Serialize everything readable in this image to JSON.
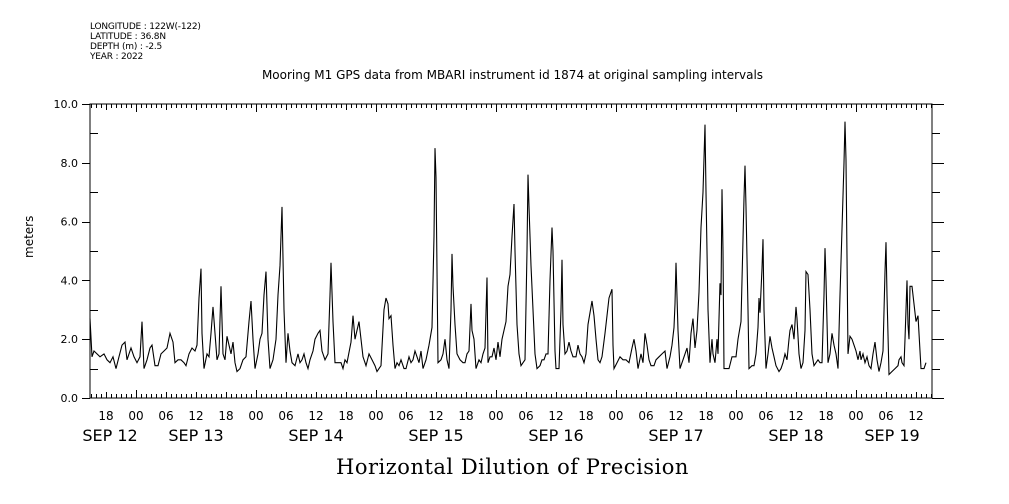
{
  "header": {
    "longitude": "LONGITUDE : 122W(-122)",
    "latitude": "LATITUDE : 36.8N",
    "depth": "DEPTH (m) : -2.5",
    "year": "YEAR : 2022"
  },
  "chart_data": {
    "type": "line",
    "title": "Mooring M1 GPS data from MBARI instrument id 1874 at original sampling intervals",
    "xlabel": "Horizontal Dilution of Precision",
    "ylabel": "meters",
    "x_units": "hours since 2022-09-12 00:00",
    "xlim": [
      14.8,
      183.2
    ],
    "ylim": [
      0,
      10
    ],
    "grid": false,
    "y_ticks": [
      "0.0",
      "2.0",
      "4.0",
      "6.0",
      "8.0",
      "10.0"
    ],
    "hour_tick_labels": [
      "18",
      "00",
      "06",
      "12",
      "18",
      "00",
      "06",
      "12",
      "18",
      "00",
      "06",
      "12",
      "18",
      "00",
      "06",
      "12",
      "18",
      "00",
      "06",
      "12",
      "18",
      "00",
      "06",
      "12",
      "18",
      "00",
      "06",
      "12",
      "18",
      "00",
      "06",
      "12"
    ],
    "hour_tick_values": [
      18,
      24,
      30,
      36,
      42,
      48,
      54,
      60,
      66,
      72,
      78,
      84,
      90,
      96,
      102,
      108,
      114,
      120,
      126,
      132,
      138,
      144,
      150,
      156,
      162,
      168,
      174,
      180,
      186,
      192,
      198,
      204
    ],
    "date_labels": [
      "SEP 12",
      "SEP 13",
      "SEP 14",
      "SEP 15",
      "SEP 16",
      "SEP 17",
      "SEP 18",
      "SEP 19"
    ],
    "x": [
      14.8,
      15.2,
      15.6,
      16.2,
      16.8,
      17.6,
      18.2,
      18.8,
      19.4,
      20.0,
      20.6,
      21.2,
      21.8,
      22.2,
      23.0,
      23.6,
      24.2,
      24.8,
      25.2,
      25.6,
      26.2,
      26.8,
      27.2,
      27.8,
      28.4,
      29.0,
      29.6,
      30.2,
      30.8,
      31.4,
      31.8,
      32.4,
      33.0,
      33.6,
      34.0,
      34.6,
      35.2,
      35.8,
      36.2,
      36.6,
      37.0,
      37.2,
      37.6,
      38.2,
      38.6,
      39.0,
      39.4,
      39.8,
      40.2,
      40.6,
      41.0,
      41.4,
      41.8,
      42.2,
      42.6,
      43.0,
      43.4,
      43.8,
      44.2,
      44.8,
      45.4,
      46.0,
      46.6,
      47.0,
      47.4,
      47.8,
      48.4,
      48.8,
      49.2,
      49.6,
      50.0,
      50.4,
      50.8,
      51.4,
      52.0,
      52.4,
      52.8,
      53.2,
      53.6,
      54.0,
      54.4,
      54.8,
      55.2,
      55.8,
      56.4,
      56.8,
      57.2,
      57.6,
      58.0,
      58.4,
      58.8,
      59.4,
      59.8,
      60.4,
      60.8,
      61.2,
      61.8,
      62.4,
      62.8,
      63.0,
      63.4,
      63.8,
      64.4,
      65.0,
      65.4,
      65.8,
      66.2,
      67.0,
      67.4,
      67.8,
      68.2,
      68.6,
      69.0,
      69.4,
      70.0,
      70.6,
      71.2,
      71.8,
      72.2,
      72.6,
      73.0,
      73.6,
      74.0,
      74.4,
      74.6,
      75.0,
      75.4,
      75.8,
      76.2,
      76.6,
      77.0,
      77.6,
      78.0,
      78.6,
      79.0,
      79.4,
      79.8,
      80.2,
      80.6,
      81.0,
      81.4,
      82.0,
      82.6,
      83.2,
      83.6,
      83.8,
      84.0,
      84.4,
      85.0,
      85.4,
      85.8,
      86.2,
      86.6,
      87.0,
      87.2,
      87.4,
      87.8,
      88.2,
      88.8,
      89.4,
      89.8,
      90.2,
      90.6,
      91.0,
      91.2,
      91.6,
      92.0,
      92.6,
      93.0,
      93.4,
      93.8,
      94.2,
      94.4,
      94.8,
      95.2,
      95.6,
      96.0,
      96.4,
      96.8,
      97.2,
      97.6,
      98.0,
      98.4,
      98.8,
      99.2,
      99.6,
      99.8,
      100.2,
      100.6,
      101.0,
      101.4,
      101.8,
      102.2,
      102.4,
      102.6,
      103.0,
      103.4,
      103.8,
      104.2,
      104.8,
      105.2,
      105.6,
      106.0,
      106.4,
      106.8,
      107.2,
      107.4,
      107.8,
      108.0,
      108.6,
      109.0,
      109.2,
      109.4,
      109.8,
      110.2,
      110.6,
      111.0,
      111.4,
      112.0,
      112.4,
      112.8,
      113.2,
      113.6,
      114.0,
      114.4,
      115.2,
      115.6,
      116.0,
      116.4,
      116.8,
      117.2,
      117.8,
      118.2,
      118.6,
      119.2,
      119.4,
      119.6,
      120.2,
      120.8,
      121.4,
      122.0,
      122.6,
      123.2,
      123.6,
      124.0,
      124.4,
      125.0,
      125.4,
      125.8,
      126.2,
      126.6,
      127.0,
      127.6,
      128.0,
      128.6,
      129.2,
      129.8,
      130.2,
      130.8,
      131.2,
      131.6,
      131.8,
      132.0,
      132.4,
      132.8,
      133.4,
      133.8,
      134.2,
      134.6,
      135.0,
      135.4,
      135.8,
      136.2,
      136.6,
      137.0,
      137.4,
      137.8,
      138.0,
      138.4,
      138.8,
      139.2,
      139.4,
      139.8,
      140.2,
      140.4,
      140.8,
      141.0,
      141.2,
      141.4,
      141.6,
      142.2,
      142.6,
      143.2,
      143.6,
      144.0,
      144.4,
      145.0,
      145.2,
      145.6,
      145.8,
      146.0,
      146.4,
      146.6,
      147.2,
      147.6,
      148.0,
      148.4,
      148.6,
      148.8,
      149.2,
      149.4,
      149.6,
      150.0,
      150.4,
      150.8,
      151.2,
      151.6,
      152.0,
      152.6,
      153.0,
      153.4,
      153.8,
      154.2,
      154.6,
      154.8,
      155.2,
      155.6,
      156.0,
      156.2,
      156.6,
      157.0,
      157.4,
      157.8,
      158.0,
      158.4,
      158.8,
      159.2,
      159.6,
      160.0,
      160.4,
      160.8,
      161.2,
      161.6,
      161.8,
      162.0,
      162.4,
      162.8,
      163.2,
      163.6,
      164.0,
      164.4,
      164.8,
      165.6,
      165.8,
      166.0,
      166.4,
      166.8,
      167.2,
      167.6,
      168.0,
      168.4,
      168.8,
      169.0,
      169.4,
      169.8,
      170.2,
      170.6,
      171.0,
      171.4,
      171.8,
      172.2,
      172.6,
      173.0,
      173.4,
      173.8,
      174.0,
      174.2,
      174.6,
      175.2,
      175.8,
      176.4,
      176.6,
      177.0,
      177.2,
      177.6,
      177.8,
      178.2,
      178.4,
      178.6,
      178.8,
      179.2,
      179.6,
      180.0,
      180.4,
      180.6,
      181.0,
      181.6,
      182.0
    ],
    "y": [
      2.7,
      1.4,
      1.6,
      1.5,
      1.4,
      1.5,
      1.3,
      1.2,
      1.4,
      1.0,
      1.4,
      1.8,
      1.9,
      1.3,
      1.7,
      1.4,
      1.2,
      1.4,
      2.6,
      1.0,
      1.3,
      1.7,
      1.8,
      1.1,
      1.1,
      1.5,
      1.6,
      1.7,
      2.2,
      1.9,
      1.2,
      1.3,
      1.3,
      1.2,
      1.1,
      1.5,
      1.7,
      1.6,
      1.8,
      3.4,
      4.4,
      2.2,
      1.0,
      1.5,
      1.4,
      2.2,
      3.1,
      2.2,
      1.3,
      1.5,
      3.8,
      1.5,
      1.3,
      2.1,
      1.8,
      1.5,
      1.9,
      1.2,
      0.9,
      1.0,
      1.3,
      1.4,
      2.6,
      3.3,
      2.0,
      1.0,
      1.5,
      2.0,
      2.2,
      3.5,
      4.3,
      2.0,
      1.0,
      1.3,
      2.0,
      3.5,
      4.5,
      6.5,
      3.0,
      1.2,
      2.2,
      1.6,
      1.2,
      1.1,
      1.5,
      1.2,
      1.3,
      1.5,
      1.2,
      1.0,
      1.3,
      1.6,
      2.0,
      2.2,
      2.3,
      1.6,
      1.3,
      1.5,
      3.5,
      4.6,
      2.6,
      1.2,
      1.2,
      1.2,
      1.0,
      1.3,
      1.2,
      1.9,
      2.8,
      2.0,
      2.3,
      2.6,
      2.0,
      1.4,
      1.1,
      1.5,
      1.3,
      1.1,
      0.9,
      1.0,
      1.1,
      3.0,
      3.4,
      3.2,
      2.7,
      2.8,
      1.8,
      1.0,
      1.2,
      1.1,
      1.3,
      1.0,
      1.0,
      1.4,
      1.2,
      1.3,
      1.6,
      1.4,
      1.2,
      1.6,
      1.0,
      1.3,
      1.8,
      2.4,
      5.5,
      8.5,
      7.5,
      1.2,
      1.3,
      1.5,
      2.0,
      1.3,
      1.0,
      3.0,
      4.9,
      3.8,
      2.5,
      1.5,
      1.3,
      1.2,
      1.2,
      1.5,
      1.6,
      3.2,
      2.3,
      2.0,
      1.0,
      1.3,
      1.2,
      1.5,
      1.7,
      4.1,
      1.2,
      1.4,
      1.4,
      1.7,
      1.3,
      1.9,
      1.4,
      2.0,
      2.3,
      2.6,
      3.8,
      4.2,
      5.5,
      6.6,
      5.0,
      2.5,
      1.5,
      1.1,
      1.2,
      1.3,
      5.0,
      7.6,
      6.5,
      4.5,
      3.0,
      1.5,
      1.0,
      1.1,
      1.3,
      1.3,
      1.5,
      1.5,
      4.0,
      5.8,
      5.0,
      1.6,
      1.0,
      1.0,
      3.0,
      4.7,
      2.5,
      1.5,
      1.6,
      1.9,
      1.6,
      1.4,
      1.4,
      1.8,
      1.5,
      1.4,
      1.2,
      1.5,
      2.5,
      3.3,
      2.8,
      2.0,
      1.3,
      1.2,
      1.4,
      2.2,
      2.8,
      3.4,
      3.7,
      1.8,
      1.0,
      1.2,
      1.4,
      1.3,
      1.3,
      1.2,
      1.7,
      2.0,
      1.6,
      1.0,
      1.5,
      1.2,
      2.2,
      1.8,
      1.3,
      1.1,
      1.1,
      1.3,
      1.4,
      1.5,
      1.6,
      1.0,
      1.4,
      1.8,
      2.4,
      3.2,
      4.6,
      2.3,
      1.0,
      1.3,
      1.5,
      1.7,
      1.2,
      2.2,
      2.7,
      1.7,
      2.3,
      3.6,
      5.8,
      7.0,
      9.3,
      7.0,
      3.0,
      1.2,
      2.0,
      1.5,
      1.2,
      2.0,
      1.5,
      3.9,
      3.5,
      7.1,
      5.0,
      1.0,
      1.0,
      1.0,
      1.4,
      1.4,
      1.4,
      2.0,
      2.6,
      4.0,
      6.8,
      7.9,
      6.5,
      3.0,
      1.0,
      1.1,
      1.1,
      1.5,
      2.4,
      3.4,
      2.9,
      4.4,
      5.4,
      3.0,
      1.0,
      1.5,
      2.1,
      1.7,
      1.4,
      1.1,
      0.9,
      1.0,
      1.2,
      1.5,
      1.3,
      2.0,
      2.3,
      2.5,
      2.0,
      3.1,
      2.7,
      1.5,
      1.0,
      1.2,
      2.3,
      4.3,
      4.2,
      3.0,
      1.5,
      1.1,
      1.2,
      1.3,
      1.2,
      1.2,
      3.5,
      5.1,
      4.0,
      1.2,
      1.5,
      2.2,
      1.8,
      1.5,
      1.0,
      3.5,
      8.0,
      9.4,
      8.1,
      1.5,
      2.1,
      2.0,
      1.8,
      1.6,
      1.3,
      1.6,
      1.3,
      1.5,
      1.2,
      1.4,
      1.1,
      1.0,
      1.5,
      1.9,
      1.3,
      0.9,
      1.2,
      1.6,
      4.3,
      5.3,
      3.5,
      0.8,
      0.9,
      1.0,
      1.1,
      1.3,
      1.4,
      1.2,
      1.1,
      2.0,
      4.0,
      2.5,
      2.0,
      3.8,
      3.8,
      3.2,
      2.6,
      2.8,
      2.2,
      1.0,
      1.0,
      1.2
    ],
    "line_color": "#000000"
  }
}
